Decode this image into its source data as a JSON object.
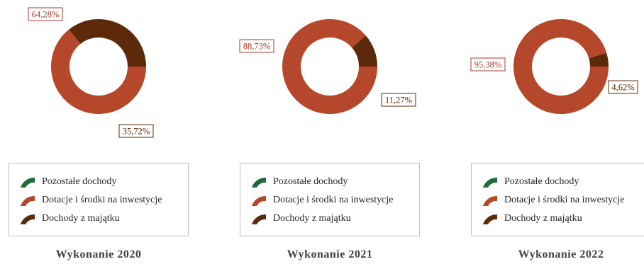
{
  "colors": {
    "pozostale": "#1f6b3a",
    "dotacje": "#b5472a",
    "majatek": "#5c2a0a",
    "label_red": "#a83a2c",
    "label_brown": "#5c2a0a"
  },
  "legend": {
    "items": [
      {
        "label": "Pozostałe dochody",
        "icon": "green-arc-icon"
      },
      {
        "label": "Dotacje i środki na inwestycje",
        "icon": "red-arc-icon"
      },
      {
        "label": "Dochody z majątku",
        "icon": "brown-arc-icon"
      }
    ]
  },
  "chart_data": [
    {
      "type": "pie",
      "title": "Wykonanie 2020",
      "categories": [
        "Pozostałe dochody",
        "Dotacje i środki na inwestycje",
        "Dochody z majątku"
      ],
      "values": [
        0,
        64.28,
        35.72
      ],
      "data_labels": [
        "",
        "64,28%",
        "35,72%"
      ]
    },
    {
      "type": "pie",
      "title": "Wykonanie 2021",
      "categories": [
        "Pozostałe dochody",
        "Dotacje i środki na inwestycje",
        "Dochody z majątku"
      ],
      "values": [
        0,
        88.73,
        11.27
      ],
      "data_labels": [
        "",
        "88,73%",
        "11,27%"
      ]
    },
    {
      "type": "pie",
      "title": "Wykonanie 2022",
      "categories": [
        "Pozostałe dochody",
        "Dotacje i środki na inwestycje",
        "Dochody z majątku"
      ],
      "values": [
        0,
        95.38,
        4.62
      ],
      "data_labels": [
        "",
        "95,38%",
        "4,62%"
      ]
    }
  ]
}
